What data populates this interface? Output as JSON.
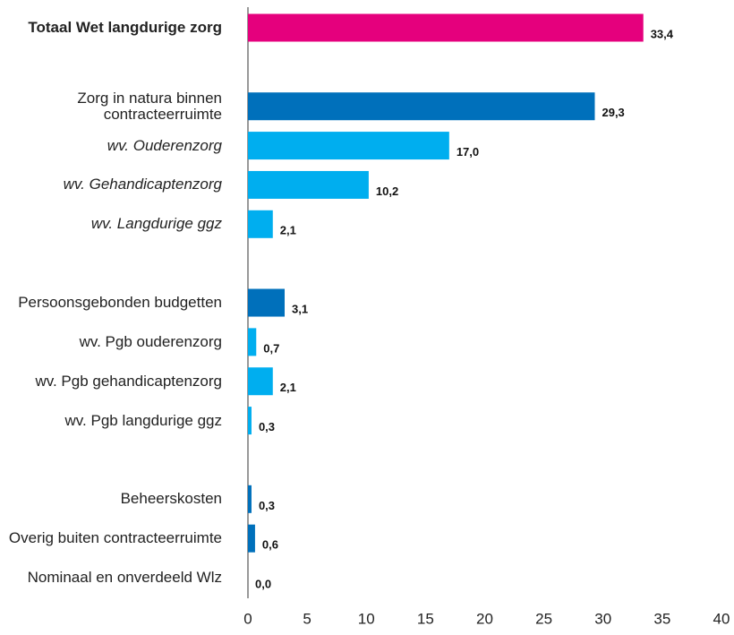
{
  "chart_data": {
    "type": "hbar",
    "categories": [
      "Totaal Wet langdurige zorg",
      null,
      "Zorg in natura binnen contracteerruimte",
      "wv. Ouderenzorg",
      "wv. Gehandicaptenzorg",
      "wv. Langdurige ggz",
      null,
      "Persoonsgebonden budgetten",
      "wv. Pgb ouderenzorg",
      "wv. Pgb gehandicaptenzorg",
      "wv. Pgb langdurige ggz",
      null,
      "Beheerskosten",
      "Overig buiten contracteerruimte",
      "Nominaal en onverdeeld Wlz"
    ],
    "values": [
      33.4,
      null,
      29.3,
      17.0,
      10.2,
      2.1,
      null,
      3.1,
      0.7,
      2.1,
      0.3,
      null,
      0.3,
      0.6,
      0.0
    ],
    "value_labels": [
      "33,4",
      null,
      "29,3",
      "17,0",
      "10,2",
      "2,1",
      null,
      "3,1",
      "0,7",
      "2,1",
      "0,3",
      null,
      "0,3",
      "0,6",
      "0,0"
    ],
    "colors": [
      "#e5007d",
      null,
      "#0070bb",
      "#00aeef",
      "#00aeef",
      "#00aeef",
      null,
      "#0070bb",
      "#00aeef",
      "#00aeef",
      "#00aeef",
      null,
      "#0070bb",
      "#0070bb",
      "#0070bb"
    ],
    "label_styles": [
      "bold",
      null,
      "normal",
      "italic",
      "italic",
      "italic",
      null,
      "normal",
      "normal",
      "normal",
      "normal",
      null,
      "normal",
      "normal",
      "normal"
    ],
    "xlim": [
      0,
      40
    ],
    "xticks": [
      0,
      5,
      10,
      15,
      20,
      25,
      30,
      35,
      40
    ],
    "grid": false
  }
}
